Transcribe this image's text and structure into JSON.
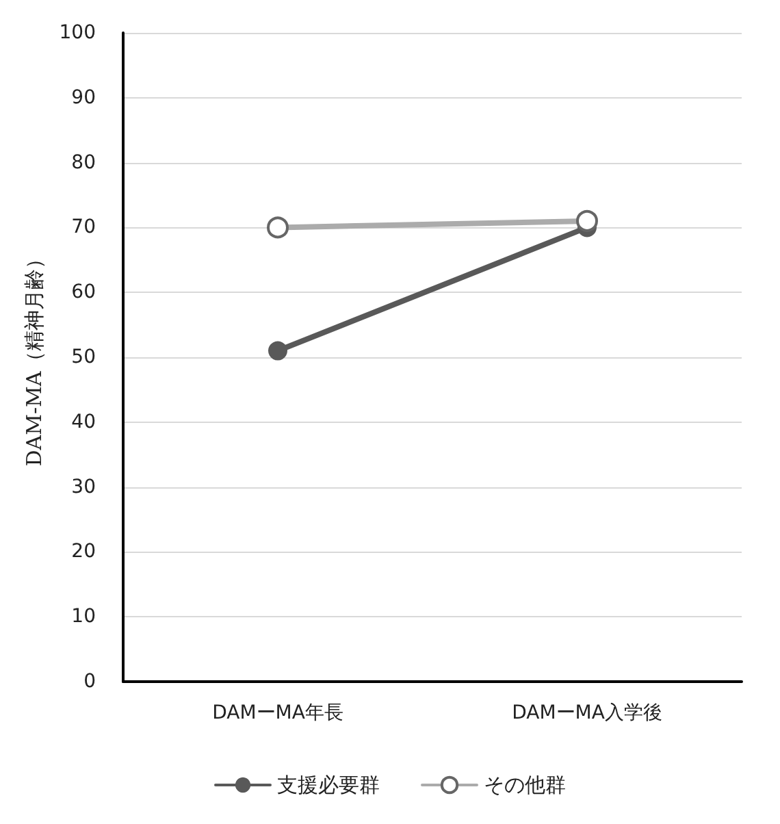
{
  "chart_data": {
    "type": "line",
    "ylabel": "DAM-MA（精神月齢）",
    "categories": [
      "DAMーMA年長",
      "DAMーMA入学後"
    ],
    "series": [
      {
        "name": "支援必要群",
        "color": "#595959",
        "values": [
          51,
          70
        ]
      },
      {
        "name": "その他群",
        "color": "#ababab",
        "values": [
          70,
          71
        ]
      }
    ],
    "ylim": [
      0,
      100
    ],
    "yticks": [
      0,
      10,
      20,
      30,
      40,
      50,
      60,
      70,
      80,
      90,
      100
    ],
    "grid": "y",
    "legend": "bottom",
    "marker": "circle"
  }
}
